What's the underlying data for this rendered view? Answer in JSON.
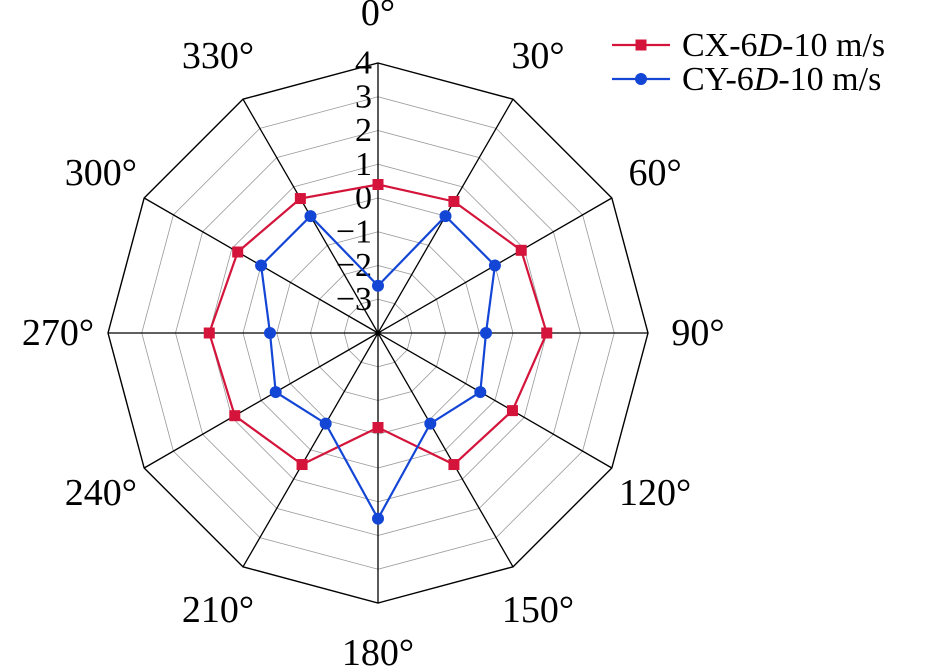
{
  "chart_data": {
    "type": "radar",
    "angles": [
      "0°",
      "30°",
      "60°",
      "90°",
      "120°",
      "150°",
      "180°",
      "210°",
      "240°",
      "270°",
      "300°",
      "330°"
    ],
    "radial_ticks": [
      "4",
      "3",
      "2",
      "1",
      "0",
      "−1",
      "−2",
      "−3"
    ],
    "rlim": [
      -4,
      4
    ],
    "grid": true,
    "legend_position": "top-right",
    "series": [
      {
        "name_prefix": "CX-6",
        "name_italic": "D",
        "name_suffix": "-10 m/s",
        "color": "#d4143a",
        "marker": "square",
        "values": [
          0.4,
          0.5,
          0.9,
          1.0,
          0.6,
          0.5,
          -1.2,
          0.5,
          0.9,
          1.0,
          0.8,
          0.6
        ]
      },
      {
        "name_prefix": "CY-6",
        "name_italic": "D",
        "name_suffix": "-10 m/s",
        "color": "#1446d6",
        "marker": "circle",
        "values": [
          -2.6,
          0.0,
          0.0,
          -0.8,
          -0.5,
          -0.9,
          1.5,
          -0.9,
          -0.5,
          -0.8,
          0.0,
          0.0
        ]
      }
    ]
  }
}
